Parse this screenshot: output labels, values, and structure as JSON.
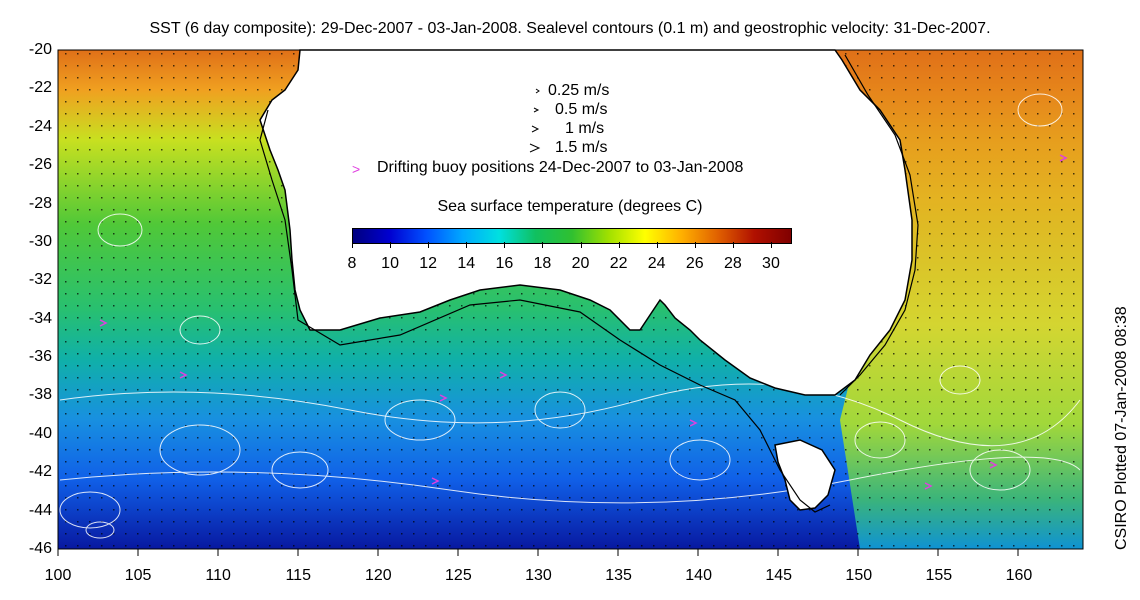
{
  "title": "SST (6 day composite): 29-Dec-2007 - 03-Jan-2008. Sealevel contours (0.1 m) and geostrophic velocity: 31-Dec-2007.",
  "credit": "CSIRO Plotted 07-Jan-2008 08:38",
  "axes": {
    "lat_labels": [
      "-20",
      "-22",
      "-24",
      "-26",
      "-28",
      "-30",
      "-32",
      "-34",
      "-36",
      "-38",
      "-40",
      "-42",
      "-44",
      "-46"
    ],
    "lon_labels": [
      "100",
      "105",
      "110",
      "115",
      "120",
      "125",
      "130",
      "135",
      "140",
      "145",
      "150",
      "155",
      "160"
    ],
    "lat_range": [
      -46,
      -20
    ],
    "lon_range": [
      100,
      164
    ]
  },
  "legend": {
    "speeds": [
      "0.25 m/s",
      "0.5 m/s",
      "1 m/s",
      "1.5 m/s"
    ],
    "buoy_symbol": ">",
    "buoy_label": "Drifting buoy positions 24-Dec-2007 to 03-Jan-2008"
  },
  "colorbar": {
    "title": "Sea surface temperature (degrees C)",
    "labels": [
      "8",
      "10",
      "12",
      "14",
      "16",
      "18",
      "20",
      "22",
      "24",
      "26",
      "28",
      "30"
    ],
    "range": [
      8,
      31
    ],
    "colors": [
      "#00007f",
      "#0000d0",
      "#0050ff",
      "#00a8ff",
      "#00e0e0",
      "#10c060",
      "#30c030",
      "#a0e000",
      "#ffff00",
      "#ffb000",
      "#e06000",
      "#b01000",
      "#800000"
    ]
  },
  "colors": {
    "land": "#ffffff",
    "coastline": "#000000",
    "contours": "#ffffff",
    "buoys": "#e040e0"
  }
}
